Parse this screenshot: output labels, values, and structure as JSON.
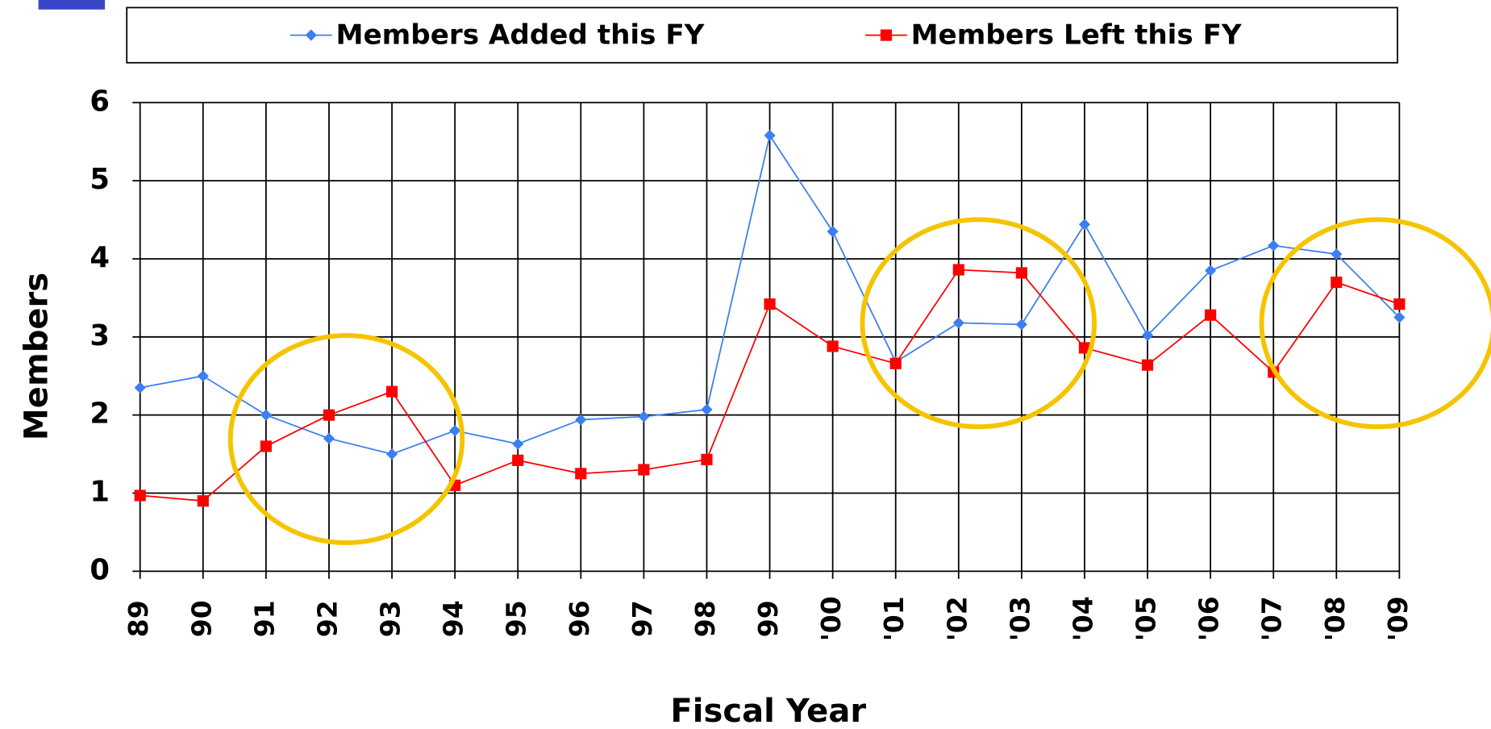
{
  "chart_data": {
    "type": "line",
    "x_label": "Fiscal Year",
    "y_label": "Members",
    "categories": [
      "89",
      "90",
      "91",
      "92",
      "93",
      "94",
      "95",
      "96",
      "97",
      "98",
      "99",
      "'00",
      "'01",
      "'02",
      "'03",
      "'04",
      "'05",
      "'06",
      "'07",
      "'08",
      "'09"
    ],
    "series": [
      {
        "name": "Members Added this FY",
        "color": "#3d7ef0",
        "marker": "diamond",
        "values": [
          2.35,
          2.5,
          2.0,
          1.7,
          1.5,
          1.8,
          1.63,
          1.94,
          1.98,
          2.07,
          5.58,
          4.35,
          2.68,
          3.18,
          3.16,
          4.44,
          3.02,
          3.85,
          4.17,
          4.06,
          3.25
        ]
      },
      {
        "name": "Members Left this FY",
        "color": "#ff0000",
        "marker": "square",
        "values": [
          0.97,
          0.9,
          1.6,
          2.0,
          2.3,
          1.1,
          1.42,
          1.25,
          1.3,
          1.43,
          3.42,
          2.88,
          2.66,
          3.86,
          3.82,
          2.86,
          2.64,
          3.28,
          2.55,
          3.7,
          3.42
        ]
      }
    ],
    "ylim": [
      0,
      6
    ],
    "yticks": [
      0,
      1,
      2,
      3,
      4,
      5,
      6
    ],
    "grid": true,
    "legend": "top"
  }
}
